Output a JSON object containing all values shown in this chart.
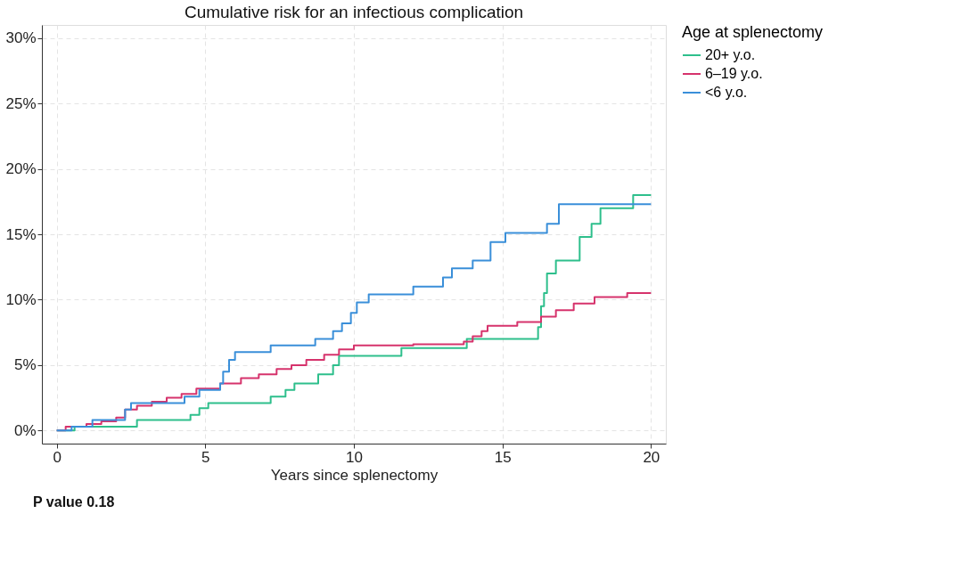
{
  "chart_data": {
    "type": "step",
    "title": "Cumulative risk for an infectious complication",
    "xlabel": "Years since splenectomy",
    "legend_title": "Age at splenectomy",
    "annotations": [
      "P value 0.18"
    ],
    "xlim": [
      -0.5,
      20.5
    ],
    "xticks": [
      0,
      5,
      10,
      15,
      20
    ],
    "ylim": [
      -1,
      31
    ],
    "yticks": [
      {
        "value": 0,
        "label": "0%"
      },
      {
        "value": 5,
        "label": "5%"
      },
      {
        "value": 10,
        "label": "10%"
      },
      {
        "value": 15,
        "label": "15%"
      },
      {
        "value": 20,
        "label": "20%"
      },
      {
        "value": 25,
        "label": "25%"
      },
      {
        "value": 30,
        "label": "30%"
      }
    ],
    "grid": true,
    "legend": "right",
    "line_style": "solid",
    "marker": "none",
    "series": [
      {
        "name": "20+ y.o.",
        "color": "#2ebf8c",
        "x": [
          0,
          0.6,
          2.7,
          4.5,
          4.8,
          5.1,
          7.2,
          7.7,
          8.0,
          8.8,
          9.3,
          9.5,
          11.6,
          13.8,
          16.2,
          16.3,
          16.4,
          16.5,
          16.8,
          17.6,
          18.0,
          18.3,
          19.4,
          20
        ],
        "values": [
          0,
          0.3,
          0.8,
          1.2,
          1.7,
          2.1,
          2.6,
          3.1,
          3.6,
          4.3,
          5.0,
          5.7,
          6.3,
          7.0,
          7.9,
          9.5,
          10.5,
          12.0,
          13.0,
          14.8,
          15.8,
          17.0,
          18.0,
          18.0
        ]
      },
      {
        "name": "6–19 y.o.",
        "color": "#d6336c",
        "x": [
          0,
          0.3,
          1.0,
          1.5,
          2.0,
          2.3,
          2.7,
          3.2,
          3.7,
          4.2,
          4.7,
          5.5,
          6.2,
          6.8,
          7.4,
          7.9,
          8.4,
          9.0,
          9.5,
          10.0,
          12.0,
          13.7,
          14.0,
          14.3,
          14.5,
          15.5,
          16.3,
          16.8,
          17.4,
          18.1,
          19.2,
          20
        ],
        "values": [
          0,
          0.3,
          0.5,
          0.7,
          1.0,
          1.6,
          1.9,
          2.2,
          2.5,
          2.8,
          3.2,
          3.6,
          4.0,
          4.3,
          4.7,
          5.0,
          5.4,
          5.8,
          6.2,
          6.5,
          6.6,
          6.8,
          7.2,
          7.6,
          8.0,
          8.3,
          8.7,
          9.2,
          9.7,
          10.2,
          10.5,
          10.5
        ]
      },
      {
        "name": "<6 y.o.",
        "color": "#3a8fd9",
        "x": [
          0,
          0.5,
          1.2,
          2.3,
          2.5,
          4.3,
          4.8,
          5.5,
          5.6,
          5.8,
          6.0,
          7.2,
          8.7,
          9.3,
          9.6,
          9.9,
          10.1,
          10.5,
          12.0,
          13.0,
          13.3,
          14.0,
          14.6,
          15.1,
          16.5,
          16.9,
          20
        ],
        "values": [
          0,
          0.3,
          0.8,
          1.6,
          2.1,
          2.6,
          3.1,
          3.6,
          4.5,
          5.4,
          6.0,
          6.5,
          7.0,
          7.6,
          8.2,
          9.0,
          9.8,
          10.4,
          11.0,
          11.7,
          12.4,
          13.0,
          14.4,
          15.1,
          15.8,
          17.3,
          17.3
        ]
      }
    ]
  }
}
